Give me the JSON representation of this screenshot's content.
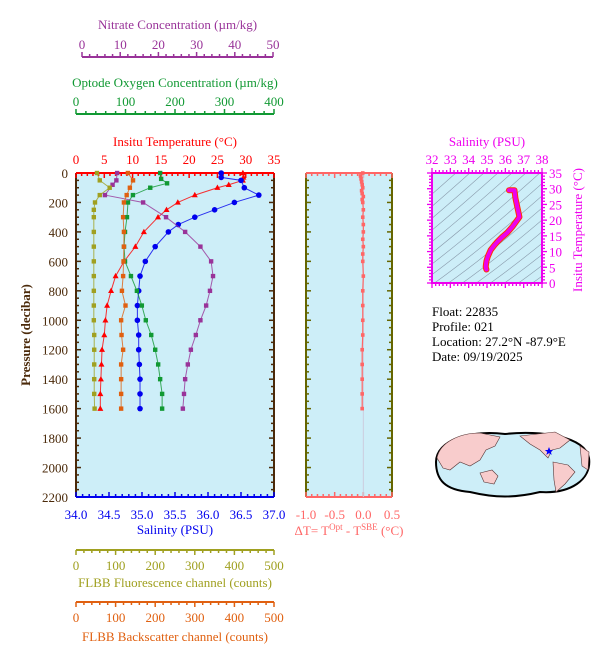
{
  "colors": {
    "temperature": "#ff0000",
    "salinity": "#0000ee",
    "oxygen": "#119933",
    "nitrate": "#993399",
    "fluorescence": "#a0a020",
    "backscatter": "#e06010",
    "delta_t": "#ff6666",
    "ts": "#ee00ee",
    "pressure_axis": "#4b2a0a",
    "plot_bg": "#cdeef8",
    "land": "#f8cccc",
    "float_marker": "#0000ff"
  },
  "info": {
    "float": "Float:  22835",
    "profile": "Profile:  021",
    "location": "Location:  27.2°N  -87.9°E",
    "date": "Date:  09/19/2025"
  },
  "chart_data": [
    {
      "type": "line",
      "title": "",
      "ylabel": "Pressure (decibar)",
      "ylim": [
        2200,
        0
      ],
      "yticks": [
        "0",
        "200",
        "400",
        "600",
        "800",
        "1000",
        "1200",
        "1400",
        "1600",
        "1800",
        "2000",
        "2200"
      ],
      "grid": false,
      "axes": [
        {
          "key": "nitrate",
          "label": "Nitrate Concentration (µm/kg)",
          "position": "top",
          "range": [
            0,
            50
          ],
          "ticks": [
            "0",
            "10",
            "20",
            "30",
            "40",
            "50"
          ]
        },
        {
          "key": "oxygen",
          "label": "Optode Oxygen Concentration (µm/kg)",
          "position": "top",
          "range": [
            0,
            400
          ],
          "ticks": [
            "0",
            "100",
            "200",
            "300",
            "400"
          ]
        },
        {
          "key": "temperature",
          "label": "Insitu Temperature (°C)",
          "position": "top",
          "range": [
            0,
            35
          ],
          "ticks": [
            "0",
            "5",
            "10",
            "15",
            "20",
            "25",
            "30",
            "35"
          ]
        },
        {
          "key": "salinity",
          "label": "Salinity (PSU)",
          "position": "bottom",
          "range": [
            34,
            37
          ],
          "ticks": [
            "34.0",
            "34.5",
            "35.0",
            "35.5",
            "36.0",
            "36.5",
            "37.0"
          ]
        },
        {
          "key": "fluorescence",
          "label": "FLBB Fluorescence channel (counts)",
          "position": "bottom",
          "range": [
            0,
            500
          ],
          "ticks": [
            "0",
            "100",
            "200",
            "300",
            "400",
            "500"
          ]
        },
        {
          "key": "backscatter",
          "label": "FLBB Backscatter channel (counts)",
          "position": "bottom",
          "range": [
            0,
            500
          ],
          "ticks": [
            "0",
            "100",
            "200",
            "300",
            "400",
            "500"
          ]
        }
      ],
      "series": [
        {
          "key": "temperature",
          "marker": "triangle",
          "pressure": [
            0,
            30,
            50,
            80,
            100,
            150,
            200,
            250,
            300,
            400,
            500,
            600,
            700,
            800,
            900,
            1000,
            1100,
            1200,
            1300,
            1400,
            1500,
            1600
          ],
          "values": [
            29.5,
            29.6,
            29.5,
            27,
            25,
            21,
            18,
            16,
            14.5,
            12,
            10.5,
            8.5,
            7,
            6.2,
            5.5,
            5.2,
            5,
            4.6,
            4.5,
            4.4,
            4.3,
            4.3
          ]
        },
        {
          "key": "salinity",
          "marker": "circle",
          "pressure": [
            0,
            30,
            50,
            100,
            150,
            200,
            250,
            300,
            350,
            400,
            500,
            600,
            700,
            800,
            900,
            1000,
            1100,
            1200,
            1300,
            1400,
            1500,
            1600
          ],
          "values": [
            36.2,
            36.2,
            36.5,
            36.55,
            36.77,
            36.4,
            36.1,
            35.8,
            35.55,
            35.4,
            35.2,
            35.05,
            34.97,
            34.95,
            34.93,
            34.93,
            34.95,
            34.95,
            34.96,
            34.97,
            34.97,
            34.97
          ]
        },
        {
          "key": "oxygen",
          "marker": "square",
          "pressure": [
            0,
            40,
            70,
            100,
            150,
            200,
            300,
            400,
            500,
            600,
            700,
            800,
            900,
            1000,
            1100,
            1200,
            1300,
            1400,
            1500,
            1600
          ],
          "values": [
            170,
            172,
            184,
            150,
            115,
            105,
            103,
            99,
            97,
            99,
            111,
            123,
            133,
            141,
            152,
            160,
            166,
            170,
            174,
            174
          ]
        },
        {
          "key": "nitrate",
          "marker": "square",
          "pressure": [
            0,
            50,
            80,
            150,
            200,
            300,
            400,
            500,
            600,
            700,
            800,
            900,
            1000,
            1100,
            1200,
            1300,
            1400,
            1500,
            1600
          ],
          "values": [
            9.2,
            9,
            8,
            6,
            16,
            22,
            27,
            31,
            33.8,
            34.3,
            33.5,
            32.5,
            31,
            29.8,
            28.5,
            27.7,
            27,
            26.7,
            26.4
          ]
        },
        {
          "key": "fluorescence",
          "marker": "square",
          "pressure": [
            0,
            50,
            100,
            150,
            200,
            250,
            300,
            400,
            500,
            600,
            700,
            800,
            900,
            1000,
            1100,
            1200,
            1300,
            1400,
            1500,
            1600
          ],
          "values": [
            53,
            60,
            85,
            60,
            48,
            45,
            45,
            45,
            45,
            45,
            45,
            45,
            45,
            45,
            46,
            46,
            46,
            46,
            46,
            47
          ]
        },
        {
          "key": "backscatter",
          "marker": "square",
          "pressure": [
            0,
            50,
            100,
            150,
            200,
            300,
            400,
            500,
            600,
            700,
            800,
            900,
            1000,
            1100,
            1200,
            1300,
            1400,
            1500,
            1600
          ],
          "values": [
            131,
            144,
            136,
            128,
            121,
            119,
            121,
            121,
            120,
            119,
            116,
            125,
            114,
            115,
            119,
            114,
            114,
            114,
            114
          ]
        }
      ]
    },
    {
      "type": "scatter",
      "xlabel": "ΔT= T^Opt - T^SBE (°C)",
      "xlabel_parts": {
        "prefix": "ΔT= T",
        "sup1": "Opt",
        "mid": " - T",
        "sup2": "SBE",
        "suffix": " (°C)"
      },
      "xlim": [
        -1.0,
        0.5
      ],
      "xticks": [
        "-1.0",
        "-0.5",
        "0.0",
        "0.5"
      ],
      "ylim": [
        2200,
        0
      ],
      "pressure": [
        0,
        20,
        40,
        60,
        80,
        100,
        120,
        140,
        160,
        180,
        200,
        250,
        300,
        350,
        400,
        450,
        500,
        550,
        600,
        700,
        800,
        900,
        1000,
        1100,
        1200,
        1300,
        1400,
        1500,
        1600
      ],
      "values": [
        -0.01,
        -0.05,
        -0.04,
        -0.03,
        -0.02,
        -0.01,
        -0.03,
        -0.02,
        0.0,
        -0.02,
        -0.01,
        0.0,
        -0.01,
        0.0,
        0.0,
        -0.01,
        0.0,
        -0.01,
        -0.01,
        0.0,
        -0.01,
        -0.01,
        -0.01,
        -0.01,
        -0.02,
        -0.02,
        -0.02,
        -0.02,
        -0.02
      ]
    },
    {
      "type": "line",
      "xlabel": "Salinity (PSU)",
      "ylabel": "Insitu Temperature (°C)",
      "xlim": [
        32,
        38
      ],
      "ylim": [
        0,
        35
      ],
      "xticks": [
        "32",
        "33",
        "34",
        "35",
        "36",
        "37",
        "38"
      ],
      "yticks": [
        "0",
        "5",
        "10",
        "15",
        "20",
        "25",
        "30",
        "35"
      ],
      "salinity": [
        36.2,
        36.3,
        36.5,
        36.55,
        36.77,
        36.4,
        36.1,
        35.8,
        35.55,
        35.4,
        35.2,
        35.05,
        34.97,
        34.95,
        34.93,
        34.95,
        34.97
      ],
      "temperature": [
        29.5,
        29.5,
        29.5,
        27,
        21,
        18,
        16,
        14.5,
        13,
        12,
        10.5,
        8.5,
        7,
        6.2,
        5.2,
        4.6,
        4.3
      ]
    }
  ]
}
